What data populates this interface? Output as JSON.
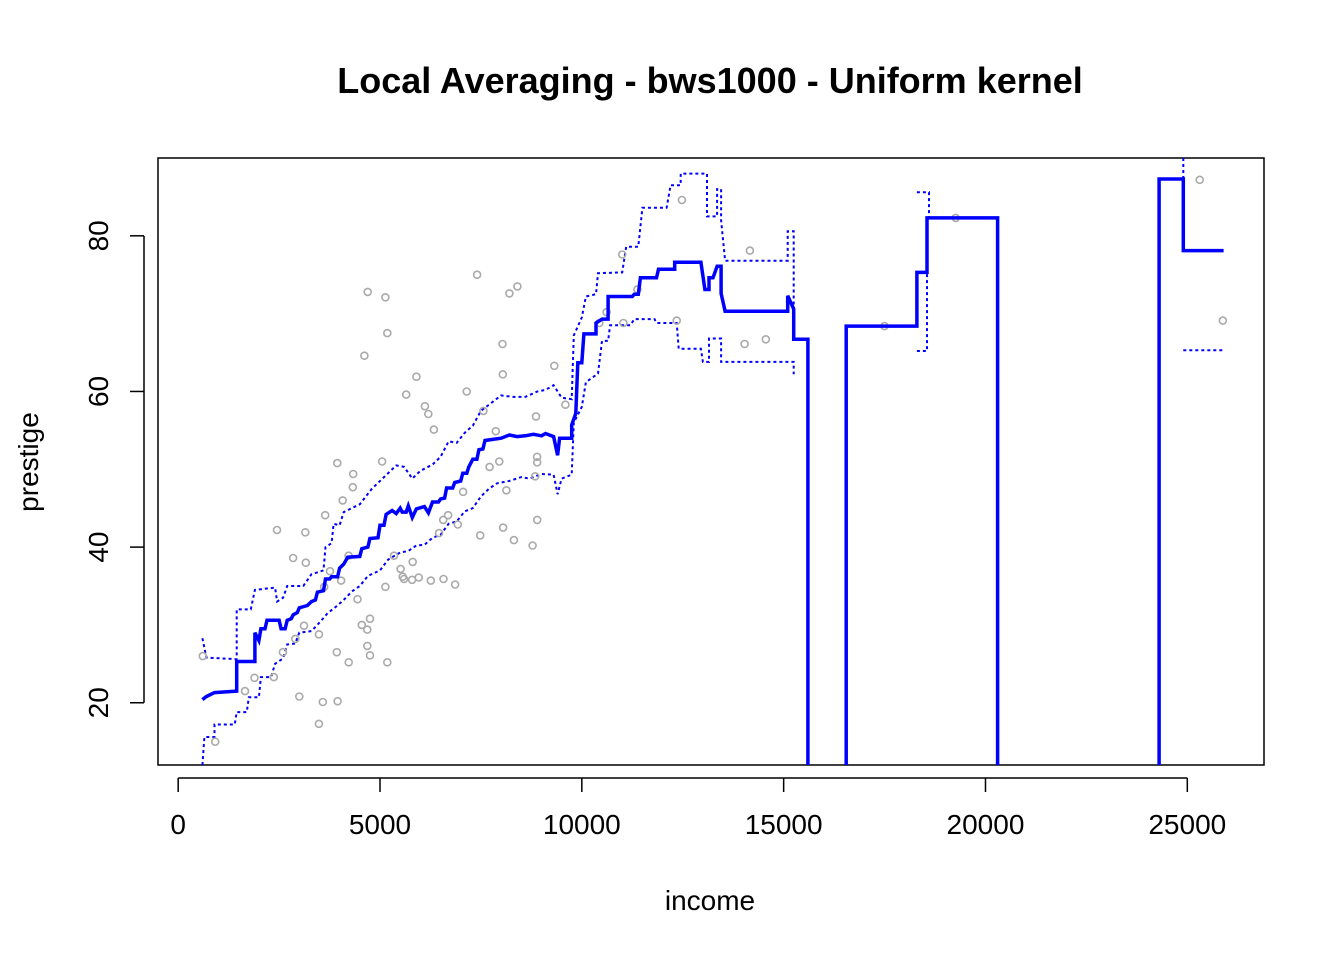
{
  "chart_data": {
    "type": "scatter",
    "title": "Local Averaging - bws1000 - Uniform kernel",
    "xlabel": "income",
    "ylabel": "prestige",
    "xlim": [
      -500,
      26900
    ],
    "ylim": [
      12,
      90
    ],
    "x_ticks": [
      0,
      5000,
      10000,
      15000,
      20000,
      25000
    ],
    "y_ticks": [
      20,
      40,
      60,
      80
    ],
    "grid": false,
    "legend": "none",
    "colors": {
      "points": "#aaaaaa",
      "fit": "#0000ff",
      "band": "#0000ff"
    },
    "points": [
      [
        611,
        26
      ],
      [
        918,
        15
      ],
      [
        1656,
        21.5
      ],
      [
        1890,
        23.2
      ],
      [
        2370,
        23.3
      ],
      [
        2448,
        42.2
      ],
      [
        2594,
        26.5
      ],
      [
        2847,
        38.6
      ],
      [
        2901,
        28.2
      ],
      [
        3000,
        20.8
      ],
      [
        3116,
        29.9
      ],
      [
        3148,
        41.9
      ],
      [
        3161,
        38
      ],
      [
        3485,
        17.3
      ],
      [
        3485,
        28.8
      ],
      [
        3582,
        20.1
      ],
      [
        3643,
        44.1
      ],
      [
        3617,
        34.9
      ],
      [
        3761,
        36.9
      ],
      [
        3930,
        26.5
      ],
      [
        3950,
        20.2
      ],
      [
        3943,
        50.8
      ],
      [
        4036,
        35.7
      ],
      [
        4075,
        46
      ],
      [
        4224,
        25.2
      ],
      [
        4223,
        38.9
      ],
      [
        4336,
        49.4
      ],
      [
        4325,
        47.7
      ],
      [
        4443,
        33.3
      ],
      [
        4549,
        30
      ],
      [
        4614,
        64.6
      ],
      [
        4686,
        29.4
      ],
      [
        4686,
        27.3
      ],
      [
        4696,
        72.8
      ],
      [
        4753,
        26.1
      ],
      [
        4753,
        30.8
      ],
      [
        5052,
        51
      ],
      [
        5134,
        72.1
      ],
      [
        5134,
        34.9
      ],
      [
        5180,
        67.5
      ],
      [
        5180,
        25.2
      ],
      [
        5347,
        38.9
      ],
      [
        5511,
        37.2
      ],
      [
        5562,
        36.2
      ],
      [
        5595,
        35.9
      ],
      [
        5648,
        59.6
      ],
      [
        5795,
        35.8
      ],
      [
        5811,
        38.1
      ],
      [
        5902,
        61.9
      ],
      [
        5959,
        36.1
      ],
      [
        6112,
        58.1
      ],
      [
        6197,
        57.1
      ],
      [
        6259,
        35.7
      ],
      [
        6336,
        55.1
      ],
      [
        6462,
        41.8
      ],
      [
        6565,
        43.5
      ],
      [
        6573,
        35.9
      ],
      [
        6686,
        44.1
      ],
      [
        6860,
        35.2
      ],
      [
        6928,
        42.9
      ],
      [
        7059,
        47.1
      ],
      [
        7147,
        60
      ],
      [
        7405,
        75
      ],
      [
        7482,
        41.5
      ],
      [
        7562,
        57.5
      ],
      [
        7716,
        50.3
      ],
      [
        7869,
        54.9
      ],
      [
        7956,
        51
      ],
      [
        8034,
        66.1
      ],
      [
        8043,
        62.2
      ],
      [
        8049,
        42.5
      ],
      [
        8131,
        47.3
      ],
      [
        8206,
        72.6
      ],
      [
        8316,
        40.9
      ],
      [
        8403,
        73.5
      ],
      [
        8780,
        40.2
      ],
      [
        8845,
        49.1
      ],
      [
        8865,
        56.8
      ],
      [
        8895,
        50.9
      ],
      [
        8891,
        51.6
      ],
      [
        8895,
        43.5
      ],
      [
        9317,
        63.3
      ],
      [
        9593,
        58.3
      ],
      [
        10432,
        68.8
      ],
      [
        10614,
        70.2
      ],
      [
        11000,
        77.6
      ],
      [
        11030,
        68.8
      ],
      [
        11377,
        73.1
      ],
      [
        12351,
        69.1
      ],
      [
        12480,
        84.6
      ],
      [
        14032,
        66.1
      ],
      [
        14163,
        78.1
      ],
      [
        14558,
        66.7
      ],
      [
        17498,
        68.4
      ],
      [
        19263,
        82.3
      ],
      [
        25308,
        87.2
      ],
      [
        25879,
        69.1
      ]
    ],
    "fit_line": [
      [
        600,
        20.4
      ],
      [
        700,
        20.8
      ],
      [
        900,
        21.3
      ],
      [
        1450,
        21.5
      ],
      [
        1450,
        25.3
      ],
      [
        1900,
        25.3
      ],
      [
        1900,
        29
      ],
      [
        2000,
        28
      ],
      [
        2050,
        29.5
      ],
      [
        2150,
        29.5
      ],
      [
        2200,
        30.6
      ],
      [
        2500,
        30.6
      ],
      [
        2550,
        29.5
      ],
      [
        2650,
        29.5
      ],
      [
        2700,
        30.6
      ],
      [
        2800,
        30.8
      ],
      [
        2850,
        31.3
      ],
      [
        2950,
        31.6
      ],
      [
        3000,
        32.2
      ],
      [
        3200,
        32.5
      ],
      [
        3300,
        33
      ],
      [
        3400,
        33.2
      ],
      [
        3450,
        34.2
      ],
      [
        3600,
        34.4
      ],
      [
        3650,
        35.9
      ],
      [
        3750,
        35.9
      ],
      [
        3800,
        36.2
      ],
      [
        3950,
        36.2
      ],
      [
        4000,
        37.3
      ],
      [
        4100,
        37.8
      ],
      [
        4200,
        38.7
      ],
      [
        4500,
        38.8
      ],
      [
        4550,
        39.8
      ],
      [
        4700,
        40
      ],
      [
        4750,
        41.1
      ],
      [
        4950,
        41.2
      ],
      [
        5000,
        42.8
      ],
      [
        5100,
        42.8
      ],
      [
        5150,
        44.2
      ],
      [
        5300,
        44.7
      ],
      [
        5400,
        44.3
      ],
      [
        5500,
        45
      ],
      [
        5550,
        44.5
      ],
      [
        5650,
        44.5
      ],
      [
        5700,
        45.3
      ],
      [
        5800,
        43.8
      ],
      [
        5900,
        44.9
      ],
      [
        6100,
        45.2
      ],
      [
        6200,
        44.4
      ],
      [
        6300,
        45.8
      ],
      [
        6450,
        45.8
      ],
      [
        6500,
        46.2
      ],
      [
        6600,
        46.3
      ],
      [
        6650,
        47.6
      ],
      [
        6800,
        47.6
      ],
      [
        6850,
        48.3
      ],
      [
        7000,
        48.5
      ],
      [
        7050,
        49.5
      ],
      [
        7150,
        49.5
      ],
      [
        7200,
        50.3
      ],
      [
        7300,
        51.3
      ],
      [
        7400,
        51.3
      ],
      [
        7450,
        52.5
      ],
      [
        7550,
        52.6
      ],
      [
        7600,
        53.7
      ],
      [
        8000,
        54
      ],
      [
        8200,
        54.4
      ],
      [
        8400,
        54.2
      ],
      [
        8600,
        54.3
      ],
      [
        8800,
        54.5
      ],
      [
        9000,
        54.3
      ],
      [
        9100,
        54.6
      ],
      [
        9300,
        54.2
      ],
      [
        9400,
        51.8
      ],
      [
        9450,
        54
      ],
      [
        9750,
        54
      ],
      [
        9750,
        55.7
      ],
      [
        9850,
        57.2
      ],
      [
        9900,
        63.7
      ],
      [
        10000,
        63.7
      ],
      [
        10050,
        67.4
      ],
      [
        10350,
        67.4
      ],
      [
        10350,
        68.8
      ],
      [
        10500,
        69.3
      ],
      [
        10650,
        69.3
      ],
      [
        10650,
        72.2
      ],
      [
        11250,
        72.2
      ],
      [
        11300,
        72.5
      ],
      [
        11400,
        72.5
      ],
      [
        11450,
        74.6
      ],
      [
        11850,
        74.6
      ],
      [
        11900,
        75.7
      ],
      [
        12300,
        75.7
      ],
      [
        12300,
        76.6
      ],
      [
        12950,
        76.6
      ],
      [
        13050,
        73.1
      ],
      [
        13150,
        73.1
      ],
      [
        13150,
        74.6
      ],
      [
        13250,
        74.6
      ],
      [
        13350,
        76.1
      ],
      [
        13450,
        76.1
      ],
      [
        13450,
        72.6
      ],
      [
        13550,
        70.3
      ],
      [
        15100,
        70.3
      ],
      [
        15100,
        72.3
      ],
      [
        15250,
        70.6
      ],
      [
        15250,
        66.7
      ],
      [
        15600,
        66.7
      ],
      [
        15600,
        12
      ]
    ],
    "fit_line_2": [
      [
        16550,
        12
      ],
      [
        16550,
        68.4
      ],
      [
        18300,
        68.4
      ],
      [
        18300,
        75.3
      ],
      [
        18550,
        75.3
      ],
      [
        18550,
        82.3
      ],
      [
        20300,
        82.3
      ],
      [
        20300,
        12
      ]
    ],
    "fit_line_3": [
      [
        24300,
        12
      ],
      [
        24300,
        87.3
      ],
      [
        24900,
        87.3
      ],
      [
        24900,
        78.1
      ],
      [
        25900,
        78.1
      ]
    ],
    "upper_band": [
      [
        600,
        28.3
      ],
      [
        700,
        25.8
      ],
      [
        1450,
        25.6
      ],
      [
        1450,
        32
      ],
      [
        1800,
        32
      ],
      [
        1900,
        34.5
      ],
      [
        2400,
        34.8
      ],
      [
        2450,
        33
      ],
      [
        2600,
        33.5
      ],
      [
        2700,
        35
      ],
      [
        3100,
        35
      ],
      [
        3300,
        36.5
      ],
      [
        3600,
        37
      ],
      [
        3650,
        40
      ],
      [
        3800,
        40.5
      ],
      [
        3850,
        43
      ],
      [
        4000,
        42.8
      ],
      [
        4100,
        44.5
      ],
      [
        4300,
        45
      ],
      [
        4500,
        45.5
      ],
      [
        4800,
        47.5
      ],
      [
        5000,
        48.5
      ],
      [
        5200,
        49.5
      ],
      [
        5400,
        50.5
      ],
      [
        5600,
        50.3
      ],
      [
        5800,
        48.8
      ],
      [
        6000,
        49.8
      ],
      [
        6300,
        50.6
      ],
      [
        6500,
        51.6
      ],
      [
        6700,
        53.6
      ],
      [
        6900,
        53.4
      ],
      [
        7100,
        54.7
      ],
      [
        7300,
        55.6
      ],
      [
        7500,
        57.5
      ],
      [
        7700,
        58.3
      ],
      [
        8000,
        59.5
      ],
      [
        8300,
        59.3
      ],
      [
        8600,
        59.3
      ],
      [
        8900,
        60
      ],
      [
        9100,
        60.2
      ],
      [
        9300,
        60.8
      ],
      [
        9500,
        59.2
      ],
      [
        9750,
        59
      ],
      [
        9800,
        67.2
      ],
      [
        10000,
        69.5
      ],
      [
        10100,
        72.2
      ],
      [
        10350,
        72.5
      ],
      [
        10400,
        75.2
      ],
      [
        11000,
        75.3
      ],
      [
        11100,
        78.6
      ],
      [
        11400,
        78.6
      ],
      [
        11500,
        83.6
      ],
      [
        12100,
        83.6
      ],
      [
        12200,
        86.5
      ],
      [
        12450,
        86.5
      ],
      [
        12450,
        88
      ],
      [
        13100,
        88
      ],
      [
        13100,
        82.5
      ],
      [
        13350,
        82.5
      ],
      [
        13350,
        86
      ],
      [
        13450,
        86
      ],
      [
        13450,
        82
      ],
      [
        13550,
        76.8
      ],
      [
        15100,
        76.8
      ],
      [
        15100,
        80.6
      ],
      [
        15250,
        80.6
      ],
      [
        15250,
        67
      ]
    ],
    "upper_band_2": [
      [
        18300,
        85.6
      ],
      [
        18600,
        85.6
      ],
      [
        18600,
        82.3
      ]
    ],
    "upper_band_3": [
      [
        24900,
        90
      ],
      [
        24900,
        80
      ]
    ],
    "lower_band": [
      [
        600,
        12
      ],
      [
        650,
        15.6
      ],
      [
        900,
        15.6
      ],
      [
        900,
        17.2
      ],
      [
        1400,
        17.2
      ],
      [
        1450,
        18.8
      ],
      [
        1700,
        18.8
      ],
      [
        1750,
        20.7
      ],
      [
        2000,
        20.7
      ],
      [
        2050,
        23.3
      ],
      [
        2300,
        23.3
      ],
      [
        2400,
        25
      ],
      [
        2600,
        25.7
      ],
      [
        2700,
        27.5
      ],
      [
        2900,
        27.6
      ],
      [
        3000,
        29
      ],
      [
        3300,
        29.2
      ],
      [
        3500,
        30.3
      ],
      [
        3700,
        31.5
      ],
      [
        3900,
        32.3
      ],
      [
        4100,
        33.2
      ],
      [
        4300,
        34.3
      ],
      [
        4500,
        35
      ],
      [
        4700,
        36.3
      ],
      [
        5000,
        37
      ],
      [
        5200,
        38.4
      ],
      [
        5500,
        39.3
      ],
      [
        5700,
        39.5
      ],
      [
        5900,
        40.2
      ],
      [
        6100,
        40.3
      ],
      [
        6300,
        41.2
      ],
      [
        6500,
        41.6
      ],
      [
        6700,
        43
      ],
      [
        6900,
        43.3
      ],
      [
        7100,
        44.6
      ],
      [
        7300,
        45
      ],
      [
        7500,
        46.5
      ],
      [
        7700,
        47.5
      ],
      [
        7900,
        48.2
      ],
      [
        8200,
        48.5
      ],
      [
        8500,
        49
      ],
      [
        8700,
        48.8
      ],
      [
        9000,
        49.4
      ],
      [
        9300,
        49.3
      ],
      [
        9400,
        46.8
      ],
      [
        9500,
        48.8
      ],
      [
        9750,
        49.3
      ],
      [
        9800,
        56
      ],
      [
        10000,
        58
      ],
      [
        10100,
        61.2
      ],
      [
        10400,
        62.3
      ],
      [
        10500,
        66.5
      ],
      [
        10650,
        66.5
      ],
      [
        10700,
        68.5
      ],
      [
        11200,
        68.5
      ],
      [
        11300,
        69.3
      ],
      [
        11800,
        69.3
      ],
      [
        11850,
        68.8
      ],
      [
        12350,
        68.8
      ],
      [
        12400,
        65.5
      ],
      [
        12950,
        65.5
      ],
      [
        13000,
        63.8
      ],
      [
        13150,
        63.8
      ],
      [
        13150,
        66.8
      ],
      [
        13450,
        66.8
      ],
      [
        13450,
        63.8
      ],
      [
        15250,
        63.8
      ],
      [
        15250,
        62.2
      ]
    ],
    "lower_band_2": [
      [
        18300,
        65.2
      ],
      [
        18550,
        65.2
      ],
      [
        18550,
        82
      ]
    ],
    "lower_band_3": [
      [
        24900,
        65.3
      ],
      [
        25900,
        65.3
      ]
    ]
  }
}
